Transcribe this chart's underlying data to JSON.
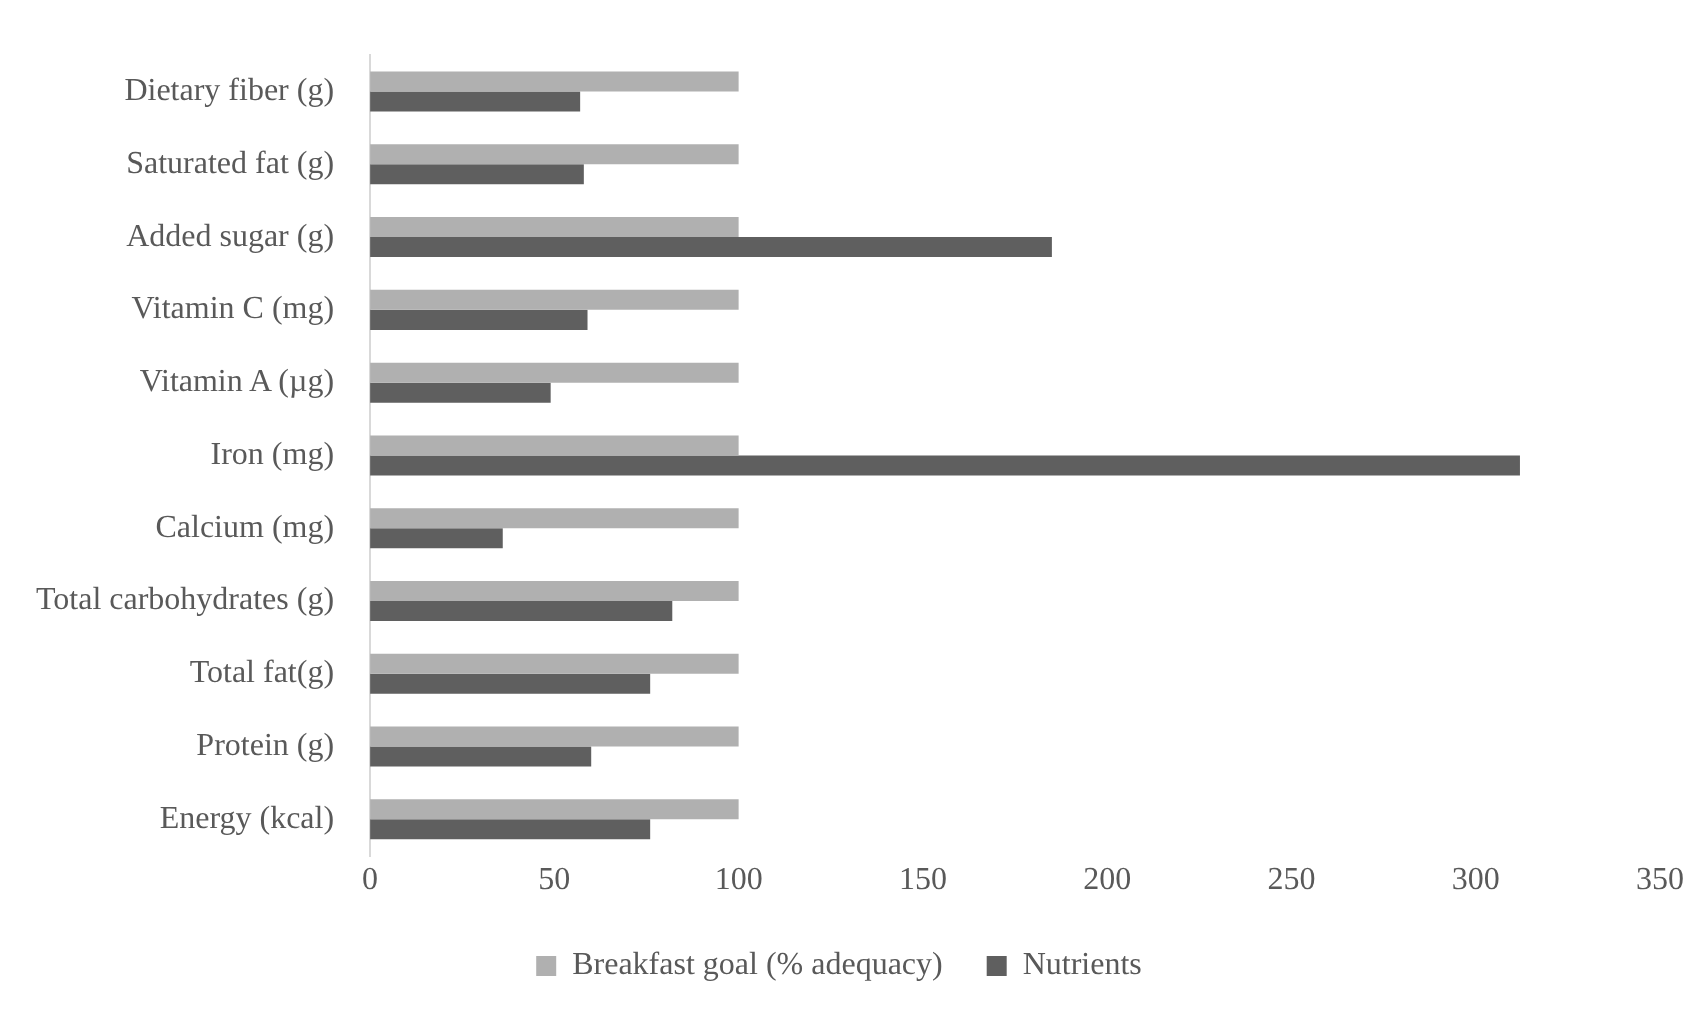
{
  "chart_data": {
    "type": "bar",
    "orientation": "horizontal",
    "categories": [
      "Dietary fiber (g)",
      "Saturated fat (g)",
      "Added sugar (g)",
      "Vitamin C (mg)",
      "Vitamin A (µg)",
      "Iron (mg)",
      "Calcium (mg)",
      "Total carbohydrates (g)",
      "Total fat(g)",
      "Protein (g)",
      "Energy (kcal)"
    ],
    "series": [
      {
        "name": "Breakfast goal (% adequacy)",
        "color": "#b0b0b0",
        "values": [
          100,
          100,
          100,
          100,
          100,
          100,
          100,
          100,
          100,
          100,
          100
        ]
      },
      {
        "name": "Nutrients",
        "color": "#5f5f5f",
        "values": [
          57,
          58,
          185,
          59,
          49,
          312,
          36,
          82,
          76,
          60,
          76
        ]
      }
    ],
    "xlim": [
      0,
      350
    ],
    "xticks": [
      0,
      50,
      100,
      150,
      200,
      250,
      300,
      350
    ],
    "grid": false,
    "legend": "bottom"
  }
}
